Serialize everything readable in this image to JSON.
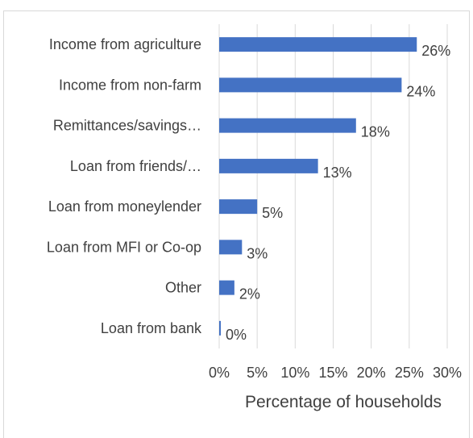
{
  "chart_data": {
    "type": "bar",
    "orientation": "horizontal",
    "categories": [
      "Income from agriculture",
      "Income from non-farm",
      "Remittances/savings…",
      "Loan from friends/…",
      "Loan from moneylender",
      "Loan from MFI or Co-op",
      "Other",
      "Loan from bank"
    ],
    "values": [
      26,
      24,
      18,
      13,
      5,
      3,
      2,
      0
    ],
    "value_labels": [
      "26%",
      "24%",
      "18%",
      "13%",
      "5%",
      "3%",
      "2%",
      "0%"
    ],
    "x_ticks": [
      "0%",
      "5%",
      "10%",
      "15%",
      "20%",
      "25%",
      "30%"
    ],
    "xlim": [
      0,
      30
    ],
    "xlabel": "Percentage of households",
    "ylabel": "",
    "title": "",
    "grid": "vertical",
    "legend": "none",
    "bar_color": "#4472c4",
    "grid_color": "#d9d9d9",
    "text_color": "#404040"
  }
}
